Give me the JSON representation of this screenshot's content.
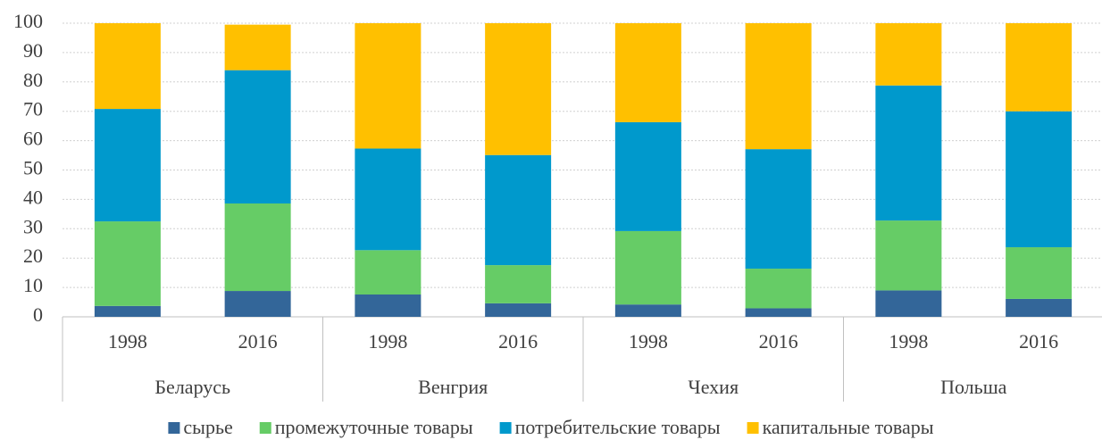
{
  "chart_data": {
    "type": "stacked_bar",
    "categories": [
      "1998",
      "2016",
      "1998",
      "2016",
      "1998",
      "2016",
      "1998",
      "2016"
    ],
    "groups": [
      "Беларусь",
      "Венгрия",
      "Чехия",
      "Польша"
    ],
    "series": [
      {
        "name": "сырье",
        "color": "#336699",
        "values": [
          3.7,
          8.8,
          7.6,
          4.6,
          4.2,
          2.9,
          9.0,
          6.1
        ]
      },
      {
        "name": "промежуточные товары",
        "color": "#66cc66",
        "values": [
          28.8,
          29.8,
          15.1,
          13.0,
          25.0,
          13.5,
          23.8,
          17.6
        ]
      },
      {
        "name": "потребительские товары",
        "color": "#0099cc",
        "values": [
          38.3,
          45.4,
          34.6,
          37.5,
          37.1,
          40.7,
          46.0,
          46.3
        ]
      },
      {
        "name": "капитальные товары",
        "color": "#ffc000",
        "values": [
          29.2,
          15.5,
          42.7,
          44.9,
          33.7,
          42.9,
          21.2,
          30.0
        ]
      }
    ],
    "ylim": [
      0,
      100
    ],
    "yticks": [
      0,
      10,
      20,
      30,
      40,
      50,
      60,
      70,
      80,
      90,
      100
    ],
    "grid": true,
    "legend": "bottom"
  }
}
